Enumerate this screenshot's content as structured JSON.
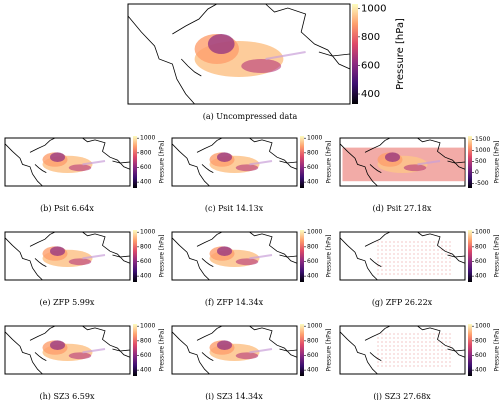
{
  "figure": {
    "colorbar_label": "Pressure [hPa]",
    "panels": [
      {
        "caption": "(a) Uncompressed data",
        "ticks": [
          400,
          600,
          800,
          1000
        ],
        "lim": [
          330,
          1030
        ]
      },
      {
        "caption": "(b) Psit 6.64x",
        "ticks": [
          400,
          600,
          800,
          1000
        ],
        "lim": [
          320,
          1030
        ]
      },
      {
        "caption": "(c) Psit 14.13x",
        "ticks": [
          400,
          600,
          800,
          1000
        ],
        "lim": [
          320,
          1030
        ]
      },
      {
        "caption": "(d) Psit 27.18x",
        "ticks": [
          -500,
          0,
          500,
          1000,
          1500
        ],
        "lim": [
          -700,
          1650
        ]
      },
      {
        "caption": "(e) ZFP 5.99x",
        "ticks": [
          400,
          600,
          800,
          1000
        ],
        "lim": [
          320,
          1030
        ]
      },
      {
        "caption": "(f) ZFP 14.34x",
        "ticks": [
          400,
          600,
          800,
          1000
        ],
        "lim": [
          320,
          1030
        ]
      },
      {
        "caption": "(g) ZFP 26.22x",
        "ticks": [
          400,
          600,
          800,
          1000
        ],
        "lim": [
          320,
          1030
        ]
      },
      {
        "caption": "(h) SZ3 6.59x",
        "ticks": [
          400,
          600,
          800,
          1000
        ],
        "lim": [
          320,
          1030
        ]
      },
      {
        "caption": "(i) SZ3 14.34x",
        "ticks": [
          400,
          600,
          800,
          1000
        ],
        "lim": [
          320,
          1030
        ]
      },
      {
        "caption": "(j) SZ3 27.68x",
        "ticks": [
          400,
          600,
          800,
          1000
        ],
        "lim": [
          320,
          1030
        ]
      }
    ]
  }
}
